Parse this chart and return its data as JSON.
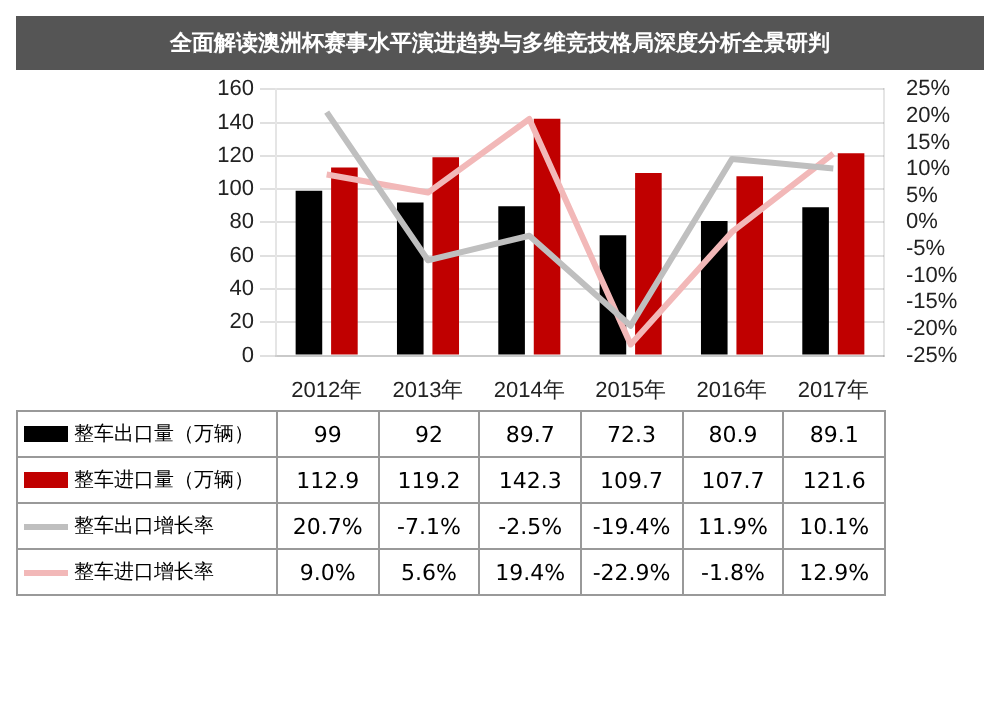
{
  "chart_data": {
    "type": "bar",
    "title": "全面解读澳洲杯赛事水平演进趋势与多维竞技格局深度分析全景研判",
    "categories": [
      "2012年",
      "2013年",
      "2014年",
      "2015年",
      "2016年",
      "2017年"
    ],
    "series": [
      {
        "name": "整车出口量（万辆）",
        "color": "#000000",
        "values": [
          99,
          92,
          89.7,
          72.3,
          80.9,
          89.1
        ],
        "value_labels": [
          "99",
          "92",
          "89.7",
          "72.3",
          "80.9",
          "89.1"
        ]
      },
      {
        "name": "整车进口量（万辆）",
        "color": "#c00000",
        "values": [
          112.9,
          119.2,
          142.3,
          109.7,
          107.7,
          121.6
        ],
        "value_labels": [
          "112.9",
          "119.2",
          "142.3",
          "109.7",
          "107.7",
          "121.6"
        ]
      },
      {
        "name": "整车出口增长率",
        "type": "line",
        "axis": "y2",
        "color": "#bfbfbf",
        "values": [
          20.7,
          -7.1,
          -2.5,
          -19.4,
          11.9,
          10.1
        ],
        "value_labels": [
          "20.7%",
          "-7.1%",
          "-2.5%",
          "-19.4%",
          "11.9%",
          "10.1%"
        ]
      },
      {
        "name": "整车进口增长率",
        "type": "line",
        "axis": "y2",
        "color": "#f2b8b8",
        "values": [
          9.0,
          5.6,
          19.4,
          -22.9,
          -1.8,
          12.9
        ],
        "value_labels": [
          "9.0%",
          "5.6%",
          "19.4%",
          "-22.9%",
          "-1.8%",
          "12.9%"
        ]
      }
    ],
    "ylim": [
      0,
      160
    ],
    "yticks": [
      0,
      20,
      40,
      60,
      80,
      100,
      120,
      140,
      160
    ],
    "y2lim": [
      -25,
      25
    ],
    "y2ticks": [
      {
        "value": -25,
        "label": "-25%"
      },
      {
        "value": -20,
        "label": "-20%"
      },
      {
        "value": -15,
        "label": "-15%"
      },
      {
        "value": -10,
        "label": "-10%"
      },
      {
        "value": -5,
        "label": "-5%"
      },
      {
        "value": 0,
        "label": "0%"
      },
      {
        "value": 5,
        "label": "5%"
      },
      {
        "value": 10,
        "label": "10%"
      },
      {
        "value": 15,
        "label": "15%"
      },
      {
        "value": 20,
        "label": "20%"
      },
      {
        "value": 25,
        "label": "25%"
      }
    ],
    "grid": "y",
    "legend": "bottom",
    "marker": "none"
  }
}
